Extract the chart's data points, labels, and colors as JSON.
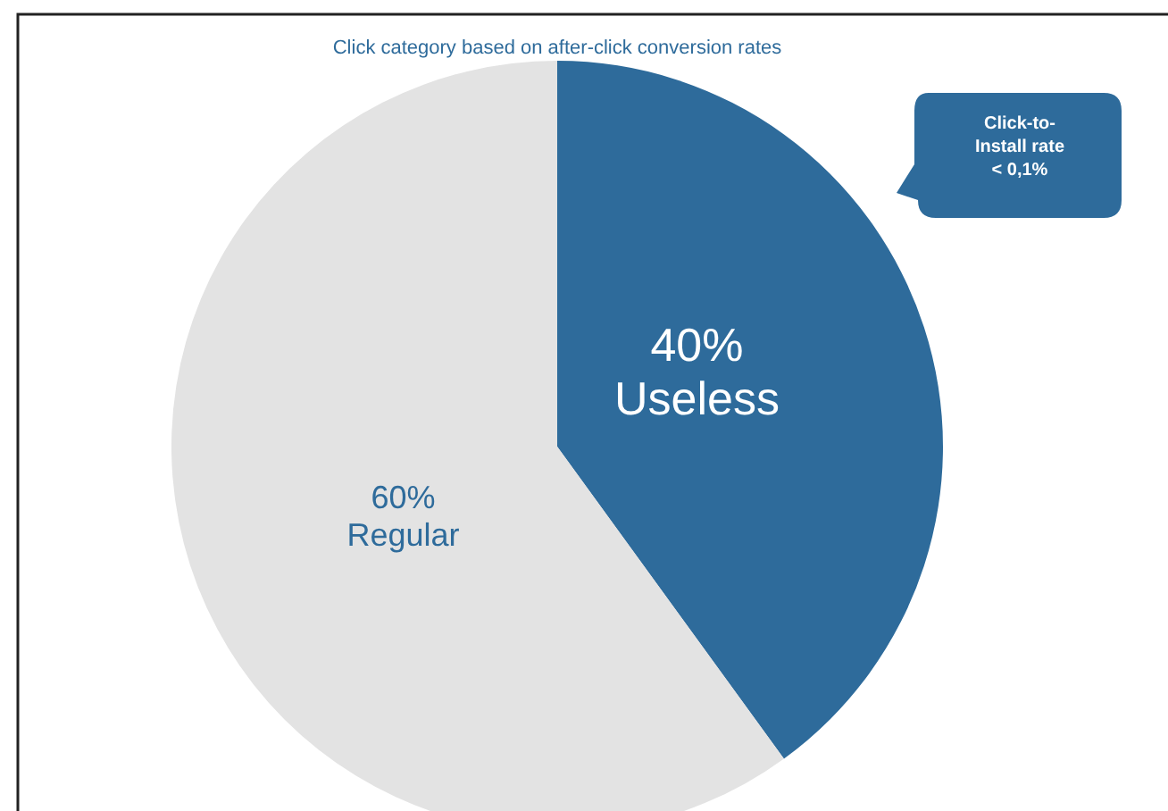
{
  "chart_data": {
    "type": "pie",
    "title": "Click category based on after-click conversion rates",
    "categories": [
      "Useless",
      "Regular"
    ],
    "values": [
      40,
      60
    ],
    "colors": [
      "#2e6b9b",
      "#e3e3e3"
    ],
    "value_labels": [
      "40%",
      "60%"
    ],
    "annotations": [
      "Click-to-\nInstall rate\n< 0,1%"
    ]
  }
}
